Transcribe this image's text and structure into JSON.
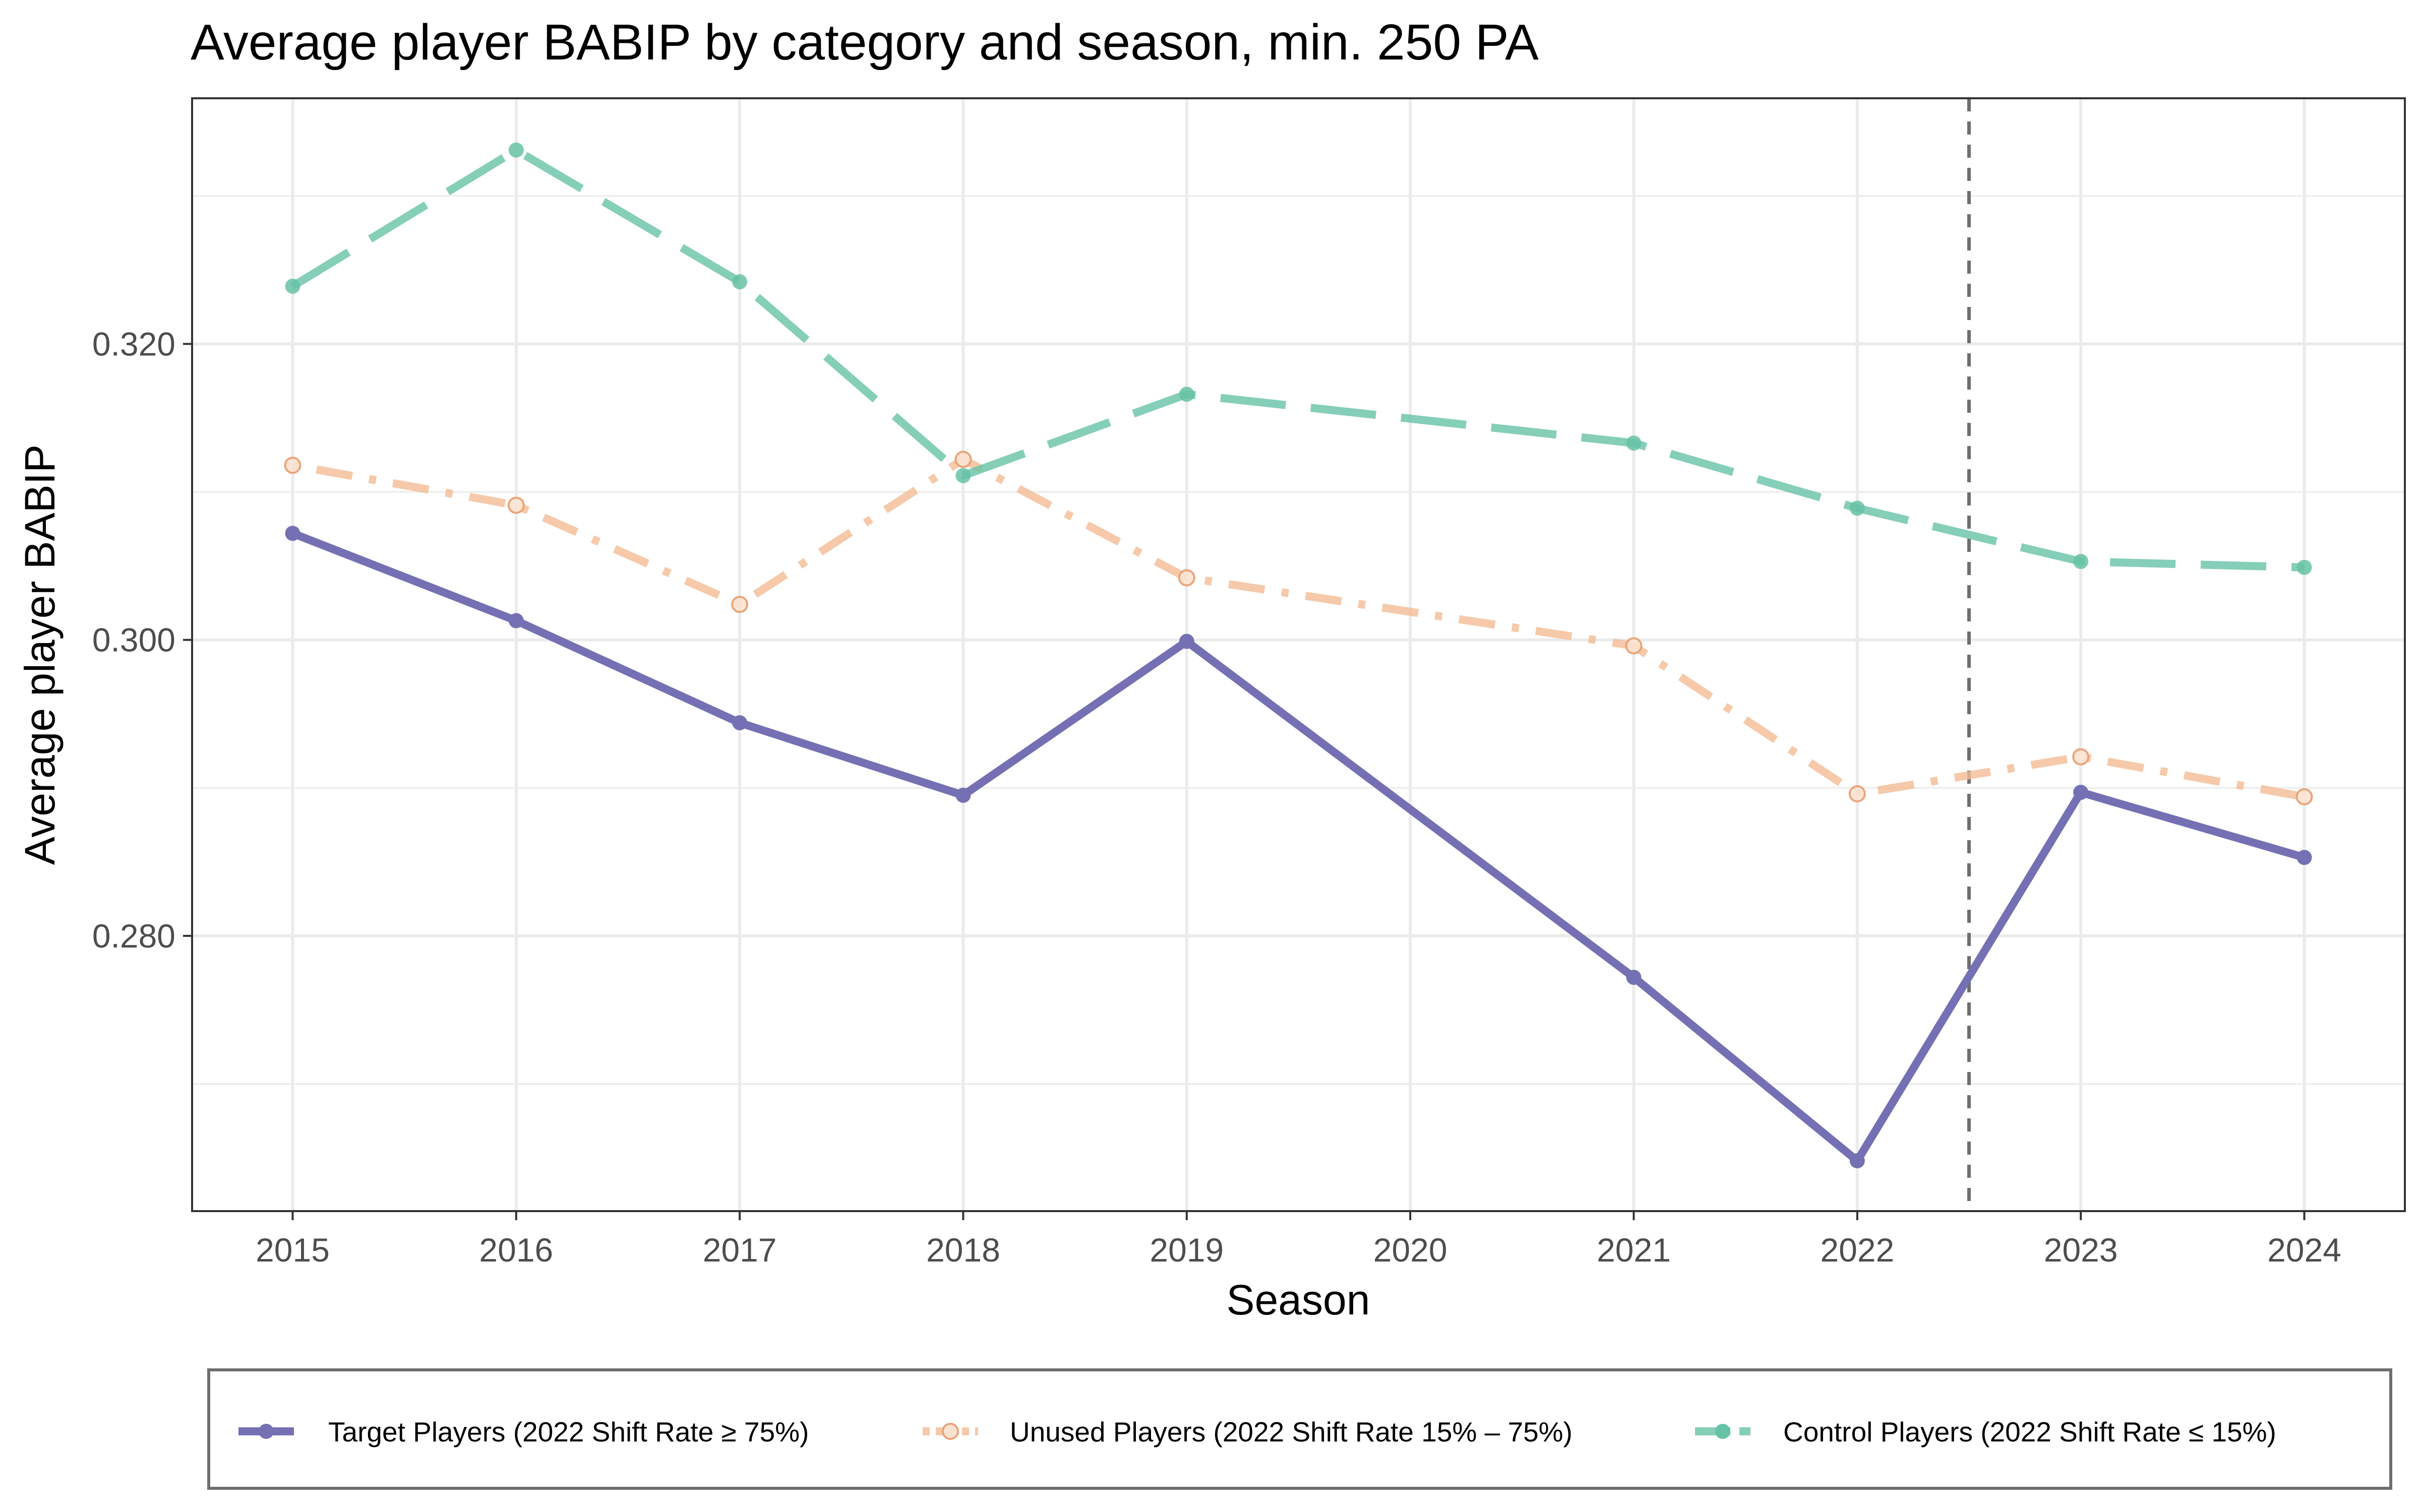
{
  "chart_data": {
    "type": "line",
    "title": "Average player BABIP by category and season, min. 250 PA",
    "xlabel": "Season",
    "ylabel": "Average player BABIP",
    "x": [
      2015,
      2016,
      2017,
      2018,
      2019,
      2020,
      2021,
      2022,
      2023,
      2024
    ],
    "x_tick_labels": [
      "2015",
      "2016",
      "2017",
      "2018",
      "2019",
      "2020",
      "2021",
      "2022",
      "2023",
      "2024"
    ],
    "y_ticks": [
      0.28,
      0.3,
      0.32
    ],
    "y_tick_labels": [
      "0.280",
      "0.300",
      "0.320"
    ],
    "xlim": [
      2014.55,
      2024.45
    ],
    "ylim": [
      0.2614,
      0.3366
    ],
    "grid": true,
    "legend_position": "bottom",
    "reference_line": {
      "x": 2022.5,
      "style": "dashed",
      "color": "#6e6e6e"
    },
    "series": [
      {
        "name": "Target Players (2022 Shift Rate ≥ 75%)",
        "color": "#7570b3",
        "dash": "solid",
        "marker": "filled",
        "x": [
          2015,
          2016,
          2017,
          2018,
          2019,
          2021,
          2022,
          2023,
          2024
        ],
        "values": [
          0.3072,
          0.3013,
          0.2944,
          0.2895,
          0.2999,
          0.2772,
          0.2648,
          0.2897,
          0.2853
        ]
      },
      {
        "name": "Unused Players (2022 Shift Rate 15% – 75%)",
        "color": "#f2bb94",
        "dash": "dotdash",
        "marker": "hollow",
        "x": [
          2015,
          2016,
          2017,
          2018,
          2019,
          2021,
          2022,
          2023,
          2024
        ],
        "values": [
          0.3118,
          0.3091,
          0.3024,
          0.3122,
          0.3042,
          0.2996,
          0.2896,
          0.2921,
          0.2894
        ]
      },
      {
        "name": "Control Players (2022 Shift Rate ≤ 15%)",
        "color": "#66c2a5",
        "dash": "longdash",
        "marker": "filled",
        "x": [
          2015,
          2016,
          2017,
          2018,
          2019,
          2021,
          2022,
          2023,
          2024
        ],
        "values": [
          0.3239,
          0.3331,
          0.3242,
          0.3111,
          0.3166,
          0.3133,
          0.3089,
          0.3053,
          0.3049
        ]
      }
    ]
  }
}
